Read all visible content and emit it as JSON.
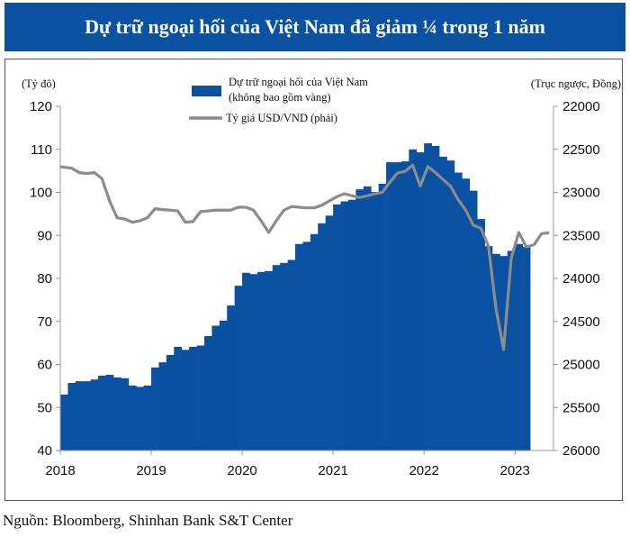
{
  "header": {
    "title": "Dự trữ ngoại hối của Việt Nam đã giảm ¼ trong 1 năm"
  },
  "source": "Nguồn: Bloomberg, Shinhan Bank S&T Center",
  "chart_data": {
    "type": "bar+line",
    "title": "Dự trữ ngoại hối của Việt Nam đã giảm ¼ trong 1 năm",
    "y_left_unit": "(Tỷ đô)",
    "y_right_unit": "(Trục ngược, Đồng)",
    "y_left_range": [
      40,
      120
    ],
    "y_left_ticks": [
      "120",
      "110",
      "100",
      "90",
      "80",
      "70",
      "60",
      "50",
      "40"
    ],
    "y_right_range": [
      22000,
      26000
    ],
    "y_right_inverted": true,
    "y_right_ticks": [
      "22000",
      "22500",
      "23000",
      "23500",
      "24000",
      "24500",
      "25000",
      "25500",
      "26000"
    ],
    "x_ticks": [
      "2018",
      "2019",
      "2020",
      "2021",
      "2022",
      "2023"
    ],
    "grid": false,
    "legend_position": "top-center",
    "colors": {
      "bars": "#0a51a1",
      "line": "#8c8c8c",
      "header": "#0a51a1"
    },
    "months": [
      "2018-01",
      "2018-02",
      "2018-03",
      "2018-04",
      "2018-05",
      "2018-06",
      "2018-07",
      "2018-08",
      "2018-09",
      "2018-10",
      "2018-11",
      "2018-12",
      "2019-01",
      "2019-02",
      "2019-03",
      "2019-04",
      "2019-05",
      "2019-06",
      "2019-07",
      "2019-08",
      "2019-09",
      "2019-10",
      "2019-11",
      "2019-12",
      "2020-01",
      "2020-02",
      "2020-03",
      "2020-04",
      "2020-05",
      "2020-06",
      "2020-07",
      "2020-08",
      "2020-09",
      "2020-10",
      "2020-11",
      "2020-12",
      "2021-01",
      "2021-02",
      "2021-03",
      "2021-04",
      "2021-05",
      "2021-06",
      "2021-07",
      "2021-08",
      "2021-09",
      "2021-10",
      "2021-11",
      "2021-12",
      "2022-01",
      "2022-02",
      "2022-03",
      "2022-04",
      "2022-05",
      "2022-06",
      "2022-07",
      "2022-08",
      "2022-09",
      "2022-10",
      "2022-11",
      "2022-12",
      "2023-01",
      "2023-02",
      "2023-03",
      "2023-04",
      "2023-05"
    ],
    "series": [
      {
        "name": "Dự trữ ngoại hối của Việt Nam",
        "name_line2": "(không bao gồm vàng)",
        "type": "bar",
        "axis": "left",
        "values": [
          53,
          55.7,
          56.1,
          56.1,
          56.5,
          57.4,
          57.6,
          57,
          56.8,
          55.1,
          54.8,
          55.1,
          59.3,
          60.5,
          62.2,
          64.1,
          63.4,
          64.1,
          64.4,
          66.6,
          69,
          70.2,
          73.7,
          78.3,
          81.3,
          81,
          81.5,
          81.7,
          83.1,
          83.6,
          84.3,
          88,
          88.5,
          90.3,
          92.8,
          94.6,
          97.2,
          97.9,
          98.3,
          100.7,
          101.4,
          100.1,
          102,
          107,
          107,
          107.2,
          110,
          109.3,
          111.4,
          110.8,
          108.3,
          107.4,
          104.6,
          103.2,
          100.4,
          93.8,
          87.5,
          85.7,
          85.2,
          86.4,
          88,
          87.3
        ]
      },
      {
        "name": "Tỷ giá USD/VND (phải)",
        "type": "line",
        "axis": "right",
        "values": [
          22702,
          22719,
          22771,
          22780,
          22771,
          22840,
          23100,
          23295,
          23310,
          23347,
          23330,
          23295,
          23190,
          23200,
          23207,
          23215,
          23347,
          23340,
          23225,
          23215,
          23207,
          23207,
          23207,
          23173,
          23173,
          23207,
          23330,
          23466,
          23330,
          23207,
          23165,
          23173,
          23180,
          23180,
          23150,
          23100,
          23050,
          23016,
          23040,
          23060,
          23040,
          23016,
          23000,
          22880,
          22775,
          22755,
          22683,
          22928,
          22700,
          22770,
          22850,
          22928,
          23085,
          23207,
          23382,
          23417,
          23626,
          24356,
          24827,
          23766,
          23466,
          23633,
          23610,
          23480,
          23470
        ]
      }
    ]
  }
}
